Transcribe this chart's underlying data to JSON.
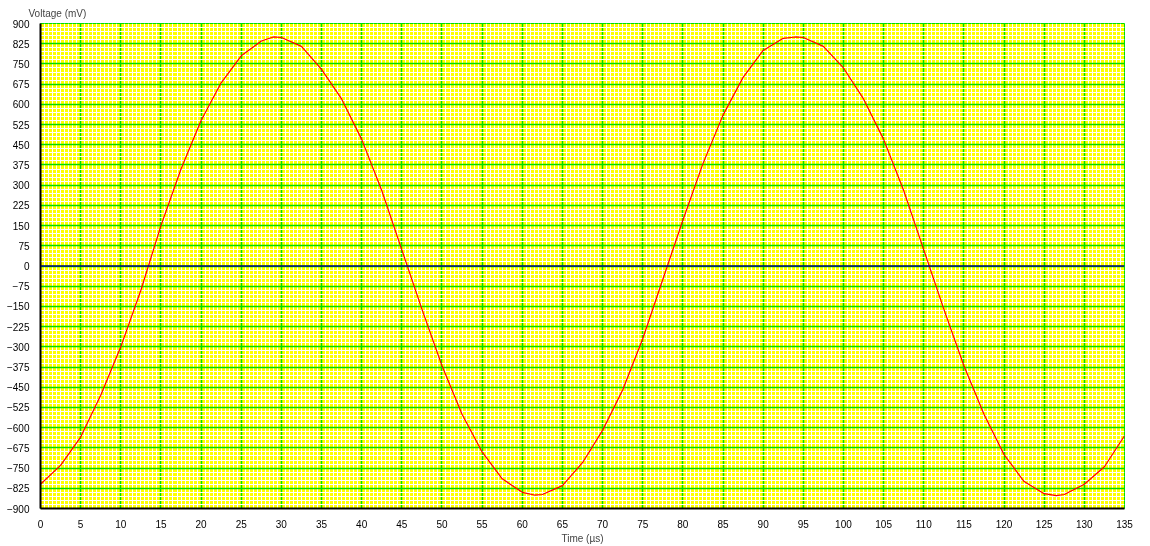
{
  "chart_data": {
    "type": "line",
    "xlabel": "Time (µs)",
    "ylabel": "Voltage (mV)",
    "x": [
      0,
      2.5,
      5,
      7.5,
      10,
      12.5,
      15,
      17.5,
      20,
      22.5,
      25,
      27.5,
      29,
      30,
      32.5,
      35,
      37.5,
      40,
      42.5,
      45,
      47.5,
      50,
      52.5,
      55,
      57.5,
      60,
      61.5,
      62.5,
      65,
      67.5,
      70,
      72.5,
      75,
      77.5,
      80,
      82.5,
      85,
      87.5,
      90,
      92.5,
      94,
      95,
      97.5,
      100,
      102.5,
      105,
      107.5,
      110,
      112.5,
      115,
      117.5,
      120,
      122.5,
      125,
      126.5,
      127.5,
      130,
      132.5,
      135
    ],
    "series": [
      {
        "color": "#ff0000",
        "values": [
          -810,
          -740,
          -635,
          -480,
          -300,
          -90,
          150,
          360,
          540,
          680,
          780,
          835,
          850,
          848,
          815,
          730,
          620,
          470,
          280,
          60,
          -160,
          -370,
          -550,
          -690,
          -790,
          -840,
          -850,
          -848,
          -815,
          -730,
          -610,
          -460,
          -270,
          -50,
          170,
          380,
          560,
          700,
          800,
          845,
          850,
          848,
          815,
          735,
          620,
          470,
          280,
          60,
          -160,
          -370,
          -550,
          -700,
          -800,
          -845,
          -852,
          -848,
          -810,
          -745,
          -630
        ]
      }
    ],
    "xlim": [
      0,
      135
    ],
    "ylim": [
      -900,
      900
    ],
    "xticks": [
      0,
      5,
      10,
      15,
      20,
      25,
      30,
      35,
      40,
      45,
      50,
      55,
      60,
      65,
      70,
      75,
      80,
      85,
      90,
      95,
      100,
      105,
      110,
      115,
      120,
      125,
      130,
      135
    ],
    "yticks": [
      -900,
      -825,
      -750,
      -675,
      -600,
      -525,
      -450,
      -375,
      -300,
      -225,
      -150,
      -75,
      0,
      75,
      150,
      225,
      300,
      375,
      450,
      525,
      600,
      675,
      750,
      825,
      900
    ],
    "grid": true,
    "marker": "none",
    "line_style": "solid",
    "ref_lines": [
      {
        "axis": "y",
        "value": 0,
        "color": "#000080"
      }
    ]
  }
}
